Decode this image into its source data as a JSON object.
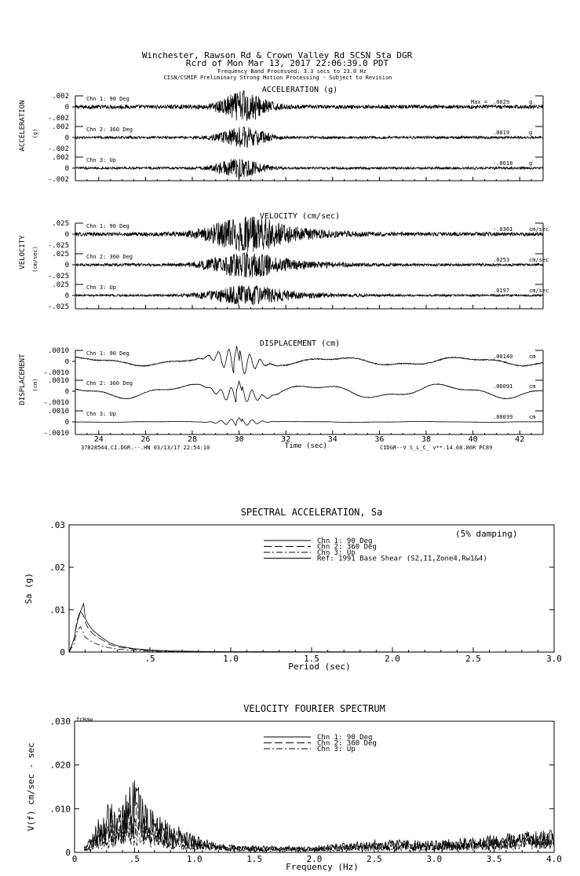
{
  "header": {
    "line1": "Winchester, Rawson Rd & Crown Valley Rd    SCSN Sta DGR",
    "line2": "Rcrd of Mon Mar 13, 2017 22:06:39.0 PDT",
    "line3": "Frequency Band Processed: 3.3 secs to 23.0 Hz",
    "line4": "CISN/CSMIP Preliminary Strong Motion Processing - Subject to Revision"
  },
  "footer": {
    "left": "37828544.CI.DGR.--.HN 03/13/17 22:54:10",
    "right": "CIDGR--V  S_L_C_  v**.14.68.86R PC89"
  },
  "chart_data": [
    {
      "type": "line",
      "title": "ACCELERATION (g)",
      "side_label": "ACCELERATION",
      "unit_label": "(g)",
      "ticks": [
        ".002",
        "0",
        "-.002"
      ],
      "ylim": [
        -0.002,
        0.002
      ],
      "xlim": [
        23,
        43
      ],
      "series": [
        {
          "name": "Chn 1: 90 Deg",
          "peak_label": "Max =",
          "peak": ".0029",
          "unit": "g",
          "peak_time": 30.2,
          "amplitude": 0.0029
        },
        {
          "name": "Chn 2: 360 Deg",
          "peak": ".0019",
          "unit": "g",
          "peak_time": 30.2,
          "amplitude": 0.0019
        },
        {
          "name": "Chn 3: Up",
          "peak": "-.0018",
          "unit": "g",
          "peak_time": 30.0,
          "amplitude": 0.0018
        }
      ]
    },
    {
      "type": "line",
      "title": "VELOCITY (cm/sec)",
      "side_label": "VELOCITY",
      "unit_label": "(cm/sec)",
      "ticks": [
        ".025",
        "0",
        "-.025"
      ],
      "ylim": [
        -0.025,
        0.025
      ],
      "xlim": [
        23,
        43
      ],
      "series": [
        {
          "name": "Chn 1: 90 Deg",
          "peak": "-.0361",
          "unit": "cm/sec",
          "peak_time": 30.2,
          "amplitude": 0.0361
        },
        {
          "name": "Chn 2: 360 Deg",
          "peak": ".0253",
          "unit": "cm/sec",
          "peak_time": 30.2,
          "amplitude": 0.0253
        },
        {
          "name": "Chn 3: Up",
          "peak": ".0197",
          "unit": "cm/sec",
          "peak_time": 30.2,
          "amplitude": 0.0197
        }
      ]
    },
    {
      "type": "line",
      "title": "DISPLACEMENT (cm)",
      "side_label": "DISPLACEMENT",
      "unit_label": "(cm)",
      "ticks": [
        ".0010",
        "0",
        "-.0010"
      ],
      "ylim": [
        -0.001,
        0.001
      ],
      "xlim": [
        23,
        43
      ],
      "xlabel": "Time (sec)",
      "xticks": [
        24,
        26,
        28,
        30,
        32,
        34,
        36,
        38,
        40,
        42
      ],
      "series": [
        {
          "name": "Chn 1: 90 Deg",
          "peak": ".00140",
          "unit": "cm",
          "peak_time": 29.9,
          "amplitude": 0.0014
        },
        {
          "name": "Chn 2: 360 Deg",
          "peak": ".00091",
          "unit": "cm",
          "peak_time": 30.0,
          "amplitude": 0.00091
        },
        {
          "name": "Chn 3: Up",
          "peak": ".00039",
          "unit": "cm",
          "peak_time": 30.0,
          "amplitude": 0.00039
        }
      ]
    },
    {
      "type": "line",
      "title": "SPECTRAL ACCELERATION, Sa",
      "xlabel": "Period (sec)",
      "ylabel": "Sa (g)",
      "note": "(5% damping)",
      "xlim": [
        0,
        3.0
      ],
      "ylim": [
        0,
        0.03
      ],
      "xticks": [
        {
          "v": 0.5,
          "label": ".5"
        },
        {
          "v": 1.0,
          "label": "1.0"
        },
        {
          "v": 1.5,
          "label": "1.5"
        },
        {
          "v": 2.0,
          "label": "2.0"
        },
        {
          "v": 2.5,
          "label": "2.5"
        },
        {
          "v": 3.0,
          "label": "3.0"
        }
      ],
      "yticks": [
        {
          "v": 0,
          "label": "0"
        },
        {
          "v": 0.01,
          "label": ".01"
        },
        {
          "v": 0.02,
          "label": ".02"
        },
        {
          "v": 0.03,
          "label": ".03"
        }
      ],
      "legend": [
        "Chn 1: 90 Deg",
        "Chn 2: 360 Deg",
        "Chn 3: Up",
        "Ref: 1991 Base Shear (S2,I1,Zone4,Rw1&4)"
      ],
      "series": [
        {
          "name": "Chn 1: 90 Deg",
          "dash": "",
          "x": [
            0.0,
            0.03,
            0.05,
            0.07,
            0.09,
            0.1,
            0.12,
            0.15,
            0.2,
            0.25,
            0.3,
            0.4,
            0.5,
            0.6,
            0.8,
            1.0,
            1.5,
            2.0,
            3.0
          ],
          "y": [
            0.0,
            0.003,
            0.007,
            0.0095,
            0.0115,
            0.008,
            0.0065,
            0.005,
            0.0035,
            0.0022,
            0.0015,
            0.0008,
            0.0005,
            0.0003,
            0.00015,
            0.0001,
            5e-05,
            3e-05,
            1e-05
          ]
        },
        {
          "name": "Chn 2: 360 Deg",
          "dash": "10,4",
          "x": [
            0.0,
            0.03,
            0.05,
            0.07,
            0.09,
            0.1,
            0.12,
            0.15,
            0.2,
            0.25,
            0.3,
            0.4,
            0.5,
            0.6,
            0.8,
            1.0,
            1.5,
            2.0,
            3.0
          ],
          "y": [
            0.0,
            0.003,
            0.0075,
            0.0098,
            0.0085,
            0.007,
            0.0055,
            0.0042,
            0.003,
            0.0018,
            0.0012,
            0.0007,
            0.0004,
            0.00025,
            0.00012,
            8e-05,
            4e-05,
            2e-05,
            1e-05
          ]
        },
        {
          "name": "Chn 3: Up",
          "dash": "8,3,2,3",
          "x": [
            0.0,
            0.03,
            0.05,
            0.07,
            0.09,
            0.1,
            0.12,
            0.15,
            0.2,
            0.25,
            0.3,
            0.4,
            0.5,
            0.6,
            0.8,
            1.0,
            1.5,
            2.0,
            3.0
          ],
          "y": [
            0.0,
            0.002,
            0.005,
            0.006,
            0.0045,
            0.0035,
            0.003,
            0.0022,
            0.0015,
            0.001,
            0.0007,
            0.0004,
            0.0002,
            0.00015,
            8e-05,
            5e-05,
            2e-05,
            1e-05,
            0.0
          ]
        }
      ]
    },
    {
      "type": "line",
      "title": "VELOCITY FOURIER SPECTRUM",
      "xlabel": "Frequency (Hz)",
      "ylabel": "V(f)  cm/sec - sec",
      "corner_label": "fcHaw",
      "xlim": [
        0,
        4.0
      ],
      "ylim": [
        0,
        0.03
      ],
      "xticks": [
        {
          "v": 0,
          "label": "0"
        },
        {
          "v": 0.5,
          "label": ".5"
        },
        {
          "v": 1.0,
          "label": "1.0"
        },
        {
          "v": 1.5,
          "label": "1.5"
        },
        {
          "v": 2.0,
          "label": "2.0"
        },
        {
          "v": 2.5,
          "label": "2.5"
        },
        {
          "v": 3.0,
          "label": "3.0"
        },
        {
          "v": 3.5,
          "label": "3.5"
        },
        {
          "v": 4.0,
          "label": "4.0"
        }
      ],
      "yticks": [
        {
          "v": 0,
          "label": "0"
        },
        {
          "v": 0.01,
          "label": ".010"
        },
        {
          "v": 0.02,
          "label": ".020"
        },
        {
          "v": 0.03,
          "label": ".030"
        }
      ],
      "legend": [
        "Chn 1: 90 Deg",
        "Chn 2: 360 Deg",
        "Chn 3: Up"
      ],
      "series": [
        {
          "name": "Chn 1: 90 Deg",
          "dash": "",
          "x": [
            0.1,
            0.2,
            0.3,
            0.4,
            0.5,
            0.6,
            0.8,
            1.0,
            1.2,
            1.5,
            2.0,
            2.5,
            3.0,
            3.5,
            4.0
          ],
          "y": [
            0.002,
            0.008,
            0.012,
            0.013,
            0.017,
            0.011,
            0.007,
            0.004,
            0.002,
            0.0015,
            0.0015,
            0.003,
            0.0028,
            0.004,
            0.0055
          ]
        },
        {
          "name": "Chn 2: 360 Deg",
          "dash": "10,4",
          "x": [
            0.1,
            0.2,
            0.3,
            0.4,
            0.5,
            0.6,
            0.8,
            1.0,
            1.2,
            1.5,
            2.0,
            2.5,
            3.0,
            3.5,
            4.0
          ],
          "y": [
            0.0015,
            0.006,
            0.009,
            0.011,
            0.012,
            0.009,
            0.006,
            0.0035,
            0.002,
            0.0014,
            0.0013,
            0.0025,
            0.0025,
            0.0035,
            0.0045
          ]
        },
        {
          "name": "Chn 3: Up",
          "dash": "8,3,2,3",
          "x": [
            0.1,
            0.2,
            0.3,
            0.4,
            0.5,
            0.6,
            0.8,
            1.0,
            1.2,
            1.5,
            2.0,
            2.5,
            3.0,
            3.5,
            4.0
          ],
          "y": [
            0.001,
            0.004,
            0.006,
            0.007,
            0.008,
            0.006,
            0.004,
            0.0025,
            0.0015,
            0.001,
            0.001,
            0.002,
            0.002,
            0.003,
            0.0035
          ]
        }
      ]
    }
  ]
}
